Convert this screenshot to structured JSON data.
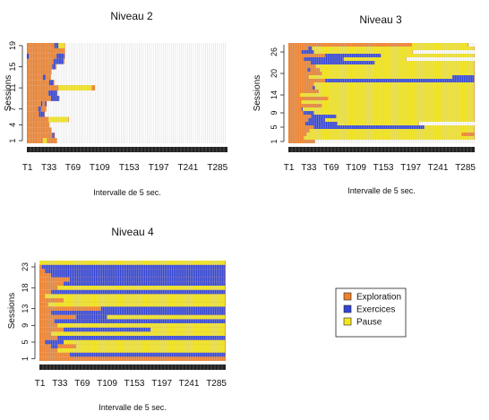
{
  "chart_data": [
    {
      "type": "heatmap",
      "title": "Niveau 2",
      "xlabel": "Intervalle de 5 sec.",
      "ylabel": "Sessions",
      "x_ticks": [
        "T1",
        "T33",
        "T69",
        "T109",
        "T153",
        "T197",
        "T241",
        "T285"
      ],
      "y_ticks": [
        "1",
        "4",
        "7",
        "11",
        "15",
        "19"
      ],
      "n_sessions": 19,
      "n_intervals": 300,
      "categories": [
        "Exploration",
        "Exercices",
        "Pause"
      ],
      "sessions": [
        {
          "session": 1,
          "length": 45,
          "runs": [
            {
              "state": "Pause",
              "from": 25,
              "to": 31
            }
          ]
        },
        {
          "session": 2,
          "length": 42,
          "runs": [
            {
              "state": "Exercices",
              "from": 39,
              "to": 42
            }
          ]
        },
        {
          "session": 3,
          "length": 37,
          "runs": []
        },
        {
          "session": 4,
          "length": 34,
          "runs": []
        },
        {
          "session": 5,
          "length": 63,
          "runs": [
            {
              "state": "Pause",
              "from": 33,
              "to": 63
            }
          ]
        },
        {
          "session": 6,
          "length": 27,
          "runs": [
            {
              "state": "Exercices",
              "from": 19,
              "to": 27
            }
          ]
        },
        {
          "session": 7,
          "length": 29,
          "runs": [
            {
              "state": "Exercices",
              "from": 18,
              "to": 22
            }
          ]
        },
        {
          "session": 8,
          "length": 30,
          "runs": [
            {
              "state": "Exercices",
              "from": 22,
              "to": 24
            },
            {
              "state": "Exercices",
              "from": 28,
              "to": 30
            }
          ]
        },
        {
          "session": 9,
          "length": 49,
          "runs": [
            {
              "state": "Exercices",
              "from": 37,
              "to": 49
            }
          ]
        },
        {
          "session": 10,
          "length": 46,
          "runs": [
            {
              "state": "Exercices",
              "from": 33,
              "to": 46
            }
          ]
        },
        {
          "session": 11,
          "length": 102,
          "runs": [
            {
              "state": "Pause",
              "from": 48,
              "to": 98
            }
          ]
        },
        {
          "session": 12,
          "length": 41,
          "runs": [
            {
              "state": "Exercices",
              "from": 34,
              "to": 41
            }
          ]
        },
        {
          "session": 13,
          "length": 36,
          "runs": [
            {
              "state": "Exercices",
              "from": 25,
              "to": 29
            }
          ]
        },
        {
          "session": 14,
          "length": 37,
          "runs": []
        },
        {
          "session": 15,
          "length": 44,
          "runs": [
            {
              "state": "Exercices",
              "from": 39,
              "to": 44
            }
          ]
        },
        {
          "session": 16,
          "length": 56,
          "runs": [
            {
              "state": "Exercices",
              "from": 41,
              "to": 56
            }
          ]
        },
        {
          "session": 17,
          "length": 57,
          "runs": [
            {
              "state": "Exercices",
              "from": 1,
              "to": 4
            },
            {
              "state": "Exercices",
              "from": 45,
              "to": 57
            }
          ]
        },
        {
          "session": 18,
          "length": 57,
          "runs": []
        },
        {
          "session": 19,
          "length": 57,
          "runs": [
            {
              "state": "Exercices",
              "from": 42,
              "to": 48
            },
            {
              "state": "Pause",
              "from": 48,
              "to": 57
            }
          ]
        }
      ]
    },
    {
      "type": "heatmap",
      "title": "Niveau 3",
      "xlabel": "Intervalle de 5 sec.",
      "ylabel": "Sessions",
      "x_ticks": [
        "T1",
        "T33",
        "T69",
        "T109",
        "T153",
        "T197",
        "T241",
        "T285"
      ],
      "y_ticks": [
        "1",
        "5",
        "9",
        "14",
        "20",
        "26"
      ],
      "n_sessions": 28,
      "n_intervals": 300,
      "categories": [
        "Exploration",
        "Exercices",
        "Pause"
      ],
      "sessions": [
        {
          "session": 1,
          "length": 43,
          "runs": []
        },
        {
          "session": 2,
          "length": 300,
          "runs": [
            {
              "state": "Pause",
              "from": 26,
              "to": 300
            }
          ]
        },
        {
          "session": 3,
          "length": 300,
          "runs": [
            {
              "state": "Pause",
              "from": 30,
              "to": 280
            },
            {
              "state": "Exploration",
              "from": 280,
              "to": 300
            }
          ]
        },
        {
          "session": 4,
          "length": 300,
          "runs": [
            {
              "state": "Pause",
              "from": 35,
              "to": 300
            }
          ]
        },
        {
          "session": 5,
          "length": 300,
          "runs": [
            {
              "state": "Exercices",
              "from": 42,
              "to": 220
            },
            {
              "state": "Pause",
              "from": 220,
              "to": 300
            }
          ]
        },
        {
          "session": 6,
          "length": 210,
          "runs": [
            {
              "state": "Exercices",
              "from": 28,
              "to": 80
            },
            {
              "state": "Pause",
              "from": 80,
              "to": 210
            }
          ]
        },
        {
          "session": 7,
          "length": 300,
          "runs": [
            {
              "state": "Exercices",
              "from": 33,
              "to": 60
            },
            {
              "state": "Pause",
              "from": 60,
              "to": 300
            }
          ]
        },
        {
          "session": 8,
          "length": 300,
          "runs": [
            {
              "state": "Exercices",
              "from": 38,
              "to": 78
            },
            {
              "state": "Pause",
              "from": 78,
              "to": 300
            }
          ]
        },
        {
          "session": 9,
          "length": 300,
          "runs": [
            {
              "state": "Exercices",
              "from": 25,
              "to": 42
            },
            {
              "state": "Pause",
              "from": 42,
              "to": 300
            }
          ]
        },
        {
          "session": 10,
          "length": 300,
          "runs": [
            {
              "state": "Exercices",
              "from": 22,
              "to": 24
            },
            {
              "state": "Pause",
              "from": 24,
              "to": 300
            }
          ]
        },
        {
          "session": 11,
          "length": 300,
          "runs": [
            {
              "state": "Pause",
              "from": 55,
              "to": 300
            }
          ]
        },
        {
          "session": 12,
          "length": 300,
          "runs": [
            {
              "state": "Pause",
              "from": 22,
              "to": 300
            }
          ]
        },
        {
          "session": 13,
          "length": 300,
          "runs": [
            {
              "state": "Pause",
              "from": 65,
              "to": 300
            }
          ]
        },
        {
          "session": 14,
          "length": 300,
          "runs": [
            {
              "state": "Pause",
              "from": 20,
              "to": 300
            }
          ]
        },
        {
          "session": 15,
          "length": 300,
          "runs": [
            {
              "state": "Pause",
              "from": 50,
              "to": 300
            }
          ]
        },
        {
          "session": 16,
          "length": 300,
          "runs": [
            {
              "state": "Exercices",
              "from": 40,
              "to": 44
            },
            {
              "state": "Pause",
              "from": 44,
              "to": 300
            }
          ]
        },
        {
          "session": 17,
          "length": 300,
          "runs": [
            {
              "state": "Pause",
              "from": 42,
              "to": 300
            }
          ]
        },
        {
          "session": 18,
          "length": 300,
          "runs": [
            {
              "state": "Exercices",
              "from": 60,
              "to": 300
            }
          ]
        },
        {
          "session": 19,
          "length": 300,
          "runs": [
            {
              "state": "Pause",
              "from": 34,
              "to": 265
            },
            {
              "state": "Exercices",
              "from": 265,
              "to": 300
            }
          ]
        },
        {
          "session": 20,
          "length": 300,
          "runs": [
            {
              "state": "Pause",
              "from": 55,
              "to": 300
            }
          ]
        },
        {
          "session": 21,
          "length": 300,
          "runs": [
            {
              "state": "Exercices",
              "from": 32,
              "to": 36
            },
            {
              "state": "Pause",
              "from": 52,
              "to": 300
            }
          ]
        },
        {
          "session": 22,
          "length": 300,
          "runs": [
            {
              "state": "Pause",
              "from": 45,
              "to": 300
            }
          ]
        },
        {
          "session": 23,
          "length": 300,
          "runs": [
            {
              "state": "Exercices",
              "from": 37,
              "to": 140
            },
            {
              "state": "Pause",
              "from": 140,
              "to": 300
            }
          ]
        },
        {
          "session": 24,
          "length": 190,
          "runs": [
            {
              "state": "Exercices",
              "from": 26,
              "to": 90
            },
            {
              "state": "Pause",
              "from": 90,
              "to": 190
            }
          ]
        },
        {
          "session": 25,
          "length": 300,
          "runs": [
            {
              "state": "Exercices",
              "from": 60,
              "to": 150
            },
            {
              "state": "Pause",
              "from": 150,
              "to": 300
            }
          ]
        },
        {
          "session": 26,
          "length": 200,
          "runs": [
            {
              "state": "Exercices",
              "from": 22,
              "to": 42
            },
            {
              "state": "Pause",
              "from": 42,
              "to": 200
            }
          ]
        },
        {
          "session": 27,
          "length": 300,
          "runs": [
            {
              "state": "Exercices",
              "from": 33,
              "to": 39
            },
            {
              "state": "Pause",
              "from": 39,
              "to": 300
            }
          ]
        },
        {
          "session": 28,
          "length": 290,
          "runs": [
            {
              "state": "Pause",
              "from": 200,
              "to": 290
            }
          ]
        }
      ]
    },
    {
      "type": "heatmap",
      "title": "Niveau 4",
      "xlabel": "Intervalle de 5 sec.",
      "ylabel": "Sessions",
      "x_ticks": [
        "T1",
        "T33",
        "T69",
        "T109",
        "T153",
        "T197",
        "T241",
        "T285"
      ],
      "y_ticks": [
        "1",
        "5",
        "9",
        "13",
        "18",
        "23"
      ],
      "n_sessions": 24,
      "n_intervals": 300,
      "categories": [
        "Exploration",
        "Exercices",
        "Pause"
      ],
      "sessions": [
        {
          "session": 1,
          "length": 300,
          "runs": []
        },
        {
          "session": 2,
          "length": 300,
          "runs": [
            {
              "state": "Exercices",
              "from": 50,
              "to": 300
            }
          ]
        },
        {
          "session": 3,
          "length": 300,
          "runs": [
            {
              "state": "Pause",
              "from": 30,
              "to": 300
            }
          ]
        },
        {
          "session": 4,
          "length": 300,
          "runs": [
            {
              "state": "Exercices",
              "from": 20,
              "to": 30
            },
            {
              "state": "Pause",
              "from": 60,
              "to": 300
            }
          ]
        },
        {
          "session": 5,
          "length": 300,
          "runs": [
            {
              "state": "Exercices",
              "from": 10,
              "to": 40
            },
            {
              "state": "Pause",
              "from": 40,
              "to": 300
            }
          ]
        },
        {
          "session": 6,
          "length": 300,
          "runs": [
            {
              "state": "Exercices",
              "from": 30,
              "to": 300
            }
          ]
        },
        {
          "session": 7,
          "length": 300,
          "runs": [
            {
              "state": "Pause",
              "from": 20,
              "to": 300
            }
          ]
        },
        {
          "session": 8,
          "length": 300,
          "runs": [
            {
              "state": "Exercices",
              "from": 40,
              "to": 180
            },
            {
              "state": "Pause",
              "from": 180,
              "to": 300
            }
          ]
        },
        {
          "session": 9,
          "length": 300,
          "runs": [
            {
              "state": "Pause",
              "from": 30,
              "to": 300
            }
          ]
        },
        {
          "session": 10,
          "length": 300,
          "runs": [
            {
              "state": "Exercices",
              "from": 25,
              "to": 300
            }
          ]
        },
        {
          "session": 11,
          "length": 300,
          "runs": [
            {
              "state": "Exercices",
              "from": 60,
              "to": 110
            },
            {
              "state": "Pause",
              "from": 110,
              "to": 300
            }
          ]
        },
        {
          "session": 12,
          "length": 300,
          "runs": [
            {
              "state": "Exercices",
              "from": 20,
              "to": 300
            }
          ]
        },
        {
          "session": 13,
          "length": 300,
          "runs": [
            {
              "state": "Exercices",
              "from": 100,
              "to": 300
            }
          ]
        },
        {
          "session": 14,
          "length": 300,
          "runs": [
            {
              "state": "Pause",
              "from": 15,
              "to": 300
            }
          ]
        },
        {
          "session": 15,
          "length": 300,
          "runs": [
            {
              "state": "Pause",
              "from": 40,
              "to": 300
            }
          ]
        },
        {
          "session": 16,
          "length": 300,
          "runs": [
            {
              "state": "Pause",
              "from": 10,
              "to": 300
            }
          ]
        },
        {
          "session": 17,
          "length": 300,
          "runs": [
            {
              "state": "Exercices",
              "from": 20,
              "to": 300
            }
          ]
        },
        {
          "session": 18,
          "length": 300,
          "runs": [
            {
              "state": "Pause",
              "from": 30,
              "to": 300
            }
          ]
        },
        {
          "session": 19,
          "length": 300,
          "runs": [
            {
              "state": "Exercices",
              "from": 40,
              "to": 300
            }
          ]
        },
        {
          "session": 20,
          "length": 300,
          "runs": [
            {
              "state": "Exercices",
              "from": 50,
              "to": 300
            }
          ]
        },
        {
          "session": 21,
          "length": 300,
          "runs": [
            {
              "state": "Exercices",
              "from": 20,
              "to": 300
            }
          ]
        },
        {
          "session": 22,
          "length": 300,
          "runs": [
            {
              "state": "Exercices",
              "from": 10,
              "to": 300
            }
          ]
        },
        {
          "session": 23,
          "length": 300,
          "runs": [
            {
              "state": "Exercices",
              "from": 5,
              "to": 300
            }
          ]
        },
        {
          "session": 24,
          "length": 300,
          "runs": [
            {
              "state": "Pause",
              "from": 1,
              "to": 300
            }
          ]
        }
      ]
    }
  ],
  "legend": {
    "placement": "bottom-right",
    "items": [
      {
        "label": "Exploration",
        "color": "#f0812b"
      },
      {
        "label": "Exercices",
        "color": "#3344d6"
      },
      {
        "label": "Pause",
        "color": "#f4e61c"
      }
    ]
  },
  "colors": {
    "Exploration": "#f0812b",
    "Exercices": "#3344d6",
    "Pause": "#f4e61c",
    "timeline_strip": "#222222",
    "cell_grid": "#c8c8c8"
  }
}
